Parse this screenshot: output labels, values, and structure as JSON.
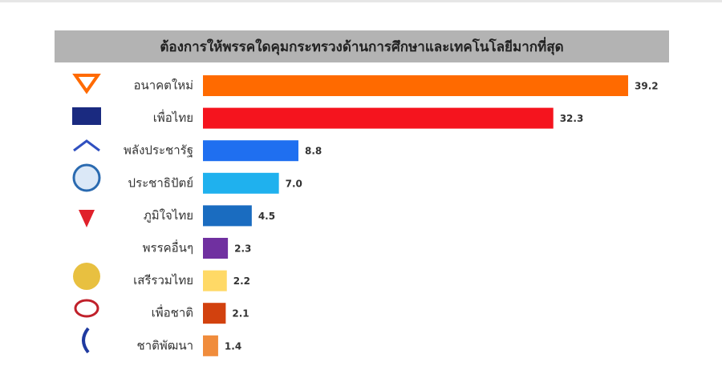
{
  "chart_data": {
    "type": "bar",
    "orientation": "horizontal",
    "title": "ต้องการให้พรรคใดคุมกระทรวงด้านการศึกษาและเทคโนโลยีมากที่สุด",
    "categories": [
      "อนาคตใหม่",
      "เพื่อไทย",
      "พลังประชารัฐ",
      "ประชาธิปัตย์",
      "ภูมิใจไทย",
      "พรรคอื่นๆ",
      "เสรีรวมไทย",
      "เพื่อชาติ",
      "ชาติพัฒนา"
    ],
    "values": [
      39.2,
      32.3,
      8.8,
      7.0,
      4.5,
      2.3,
      2.2,
      2.1,
      1.4
    ],
    "value_labels": [
      "39.2",
      "32.3",
      "8.8",
      "7.0",
      "4.5",
      "2.3",
      "2.2",
      "2.1",
      "1.4"
    ],
    "colors": [
      "#ff6a00",
      "#f5141e",
      "#1f6ff0",
      "#1fb1ee",
      "#1a6cc0",
      "#7030a0",
      "#ffd966",
      "#d2410e",
      "#f08c3c"
    ]
  }
}
